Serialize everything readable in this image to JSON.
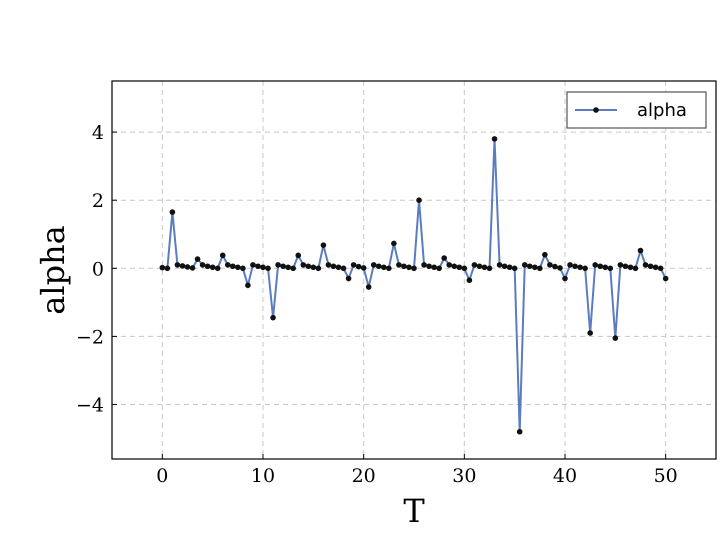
{
  "chart_data": {
    "type": "line",
    "xlabel": "T",
    "ylabel": "alpha",
    "x": [
      0,
      0.5,
      1,
      1.5,
      2,
      2.5,
      3,
      3.5,
      4,
      4.5,
      5,
      5.5,
      6,
      6.5,
      7,
      7.5,
      8,
      8.5,
      9,
      9.5,
      10,
      10.5,
      11,
      11.5,
      12,
      12.5,
      13,
      13.5,
      14,
      14.5,
      15,
      15.5,
      16,
      16.5,
      17,
      17.5,
      18,
      18.5,
      19,
      19.5,
      20,
      20.5,
      21,
      21.5,
      22,
      22.5,
      23,
      23.5,
      24,
      24.5,
      25,
      25.5,
      26,
      26.5,
      27,
      27.5,
      28,
      28.5,
      29,
      29.5,
      30,
      30.5,
      31,
      31.5,
      32,
      32.5,
      33,
      33.5,
      34,
      34.5,
      35,
      35.5,
      36,
      36.5,
      37,
      37.5,
      38,
      38.5,
      39,
      39.5,
      40,
      40.5,
      41,
      41.5,
      42,
      42.5,
      43,
      43.5,
      44,
      44.5,
      45,
      45.5,
      46,
      46.5,
      47,
      47.5,
      48,
      48.5,
      49,
      49.5,
      50
    ],
    "series": [
      {
        "name": "alpha",
        "color": "#5b7dbf",
        "marker_color": "#111111",
        "values": [
          0.02,
          0.0,
          1.65,
          0.1,
          0.07,
          0.04,
          0.01,
          0.27,
          0.1,
          0.06,
          0.03,
          0.0,
          0.38,
          0.1,
          0.06,
          0.03,
          0.0,
          -0.5,
          0.1,
          0.06,
          0.03,
          0.0,
          -1.45,
          0.1,
          0.06,
          0.03,
          0.0,
          0.38,
          0.1,
          0.06,
          0.03,
          0.0,
          0.68,
          0.1,
          0.06,
          0.03,
          0.0,
          -0.3,
          0.1,
          0.05,
          0.01,
          -0.55,
          0.1,
          0.06,
          0.03,
          0.0,
          0.73,
          0.1,
          0.06,
          0.03,
          0.0,
          2.0,
          0.1,
          0.06,
          0.03,
          0.0,
          0.3,
          0.1,
          0.06,
          0.03,
          0.0,
          -0.35,
          0.1,
          0.06,
          0.03,
          0.0,
          3.8,
          0.1,
          0.06,
          0.03,
          0.0,
          -4.8,
          0.1,
          0.06,
          0.03,
          0.0,
          0.4,
          0.1,
          0.05,
          0.01,
          -0.3,
          0.1,
          0.06,
          0.03,
          0.0,
          -1.9,
          0.1,
          0.06,
          0.03,
          0.0,
          -2.05,
          0.1,
          0.06,
          0.03,
          0.0,
          0.52,
          0.1,
          0.06,
          0.03,
          0.0,
          -0.3
        ]
      }
    ],
    "xlim": [
      -5,
      55
    ],
    "xticks": [
      0,
      10,
      20,
      30,
      40,
      50
    ],
    "ylim": [
      -5.6,
      5.5
    ],
    "yticks": [
      {
        "value": -4,
        "label": "−4"
      },
      {
        "value": -2,
        "label": "−2"
      },
      0,
      2,
      4
    ],
    "grid": true,
    "legend": "upper right"
  }
}
